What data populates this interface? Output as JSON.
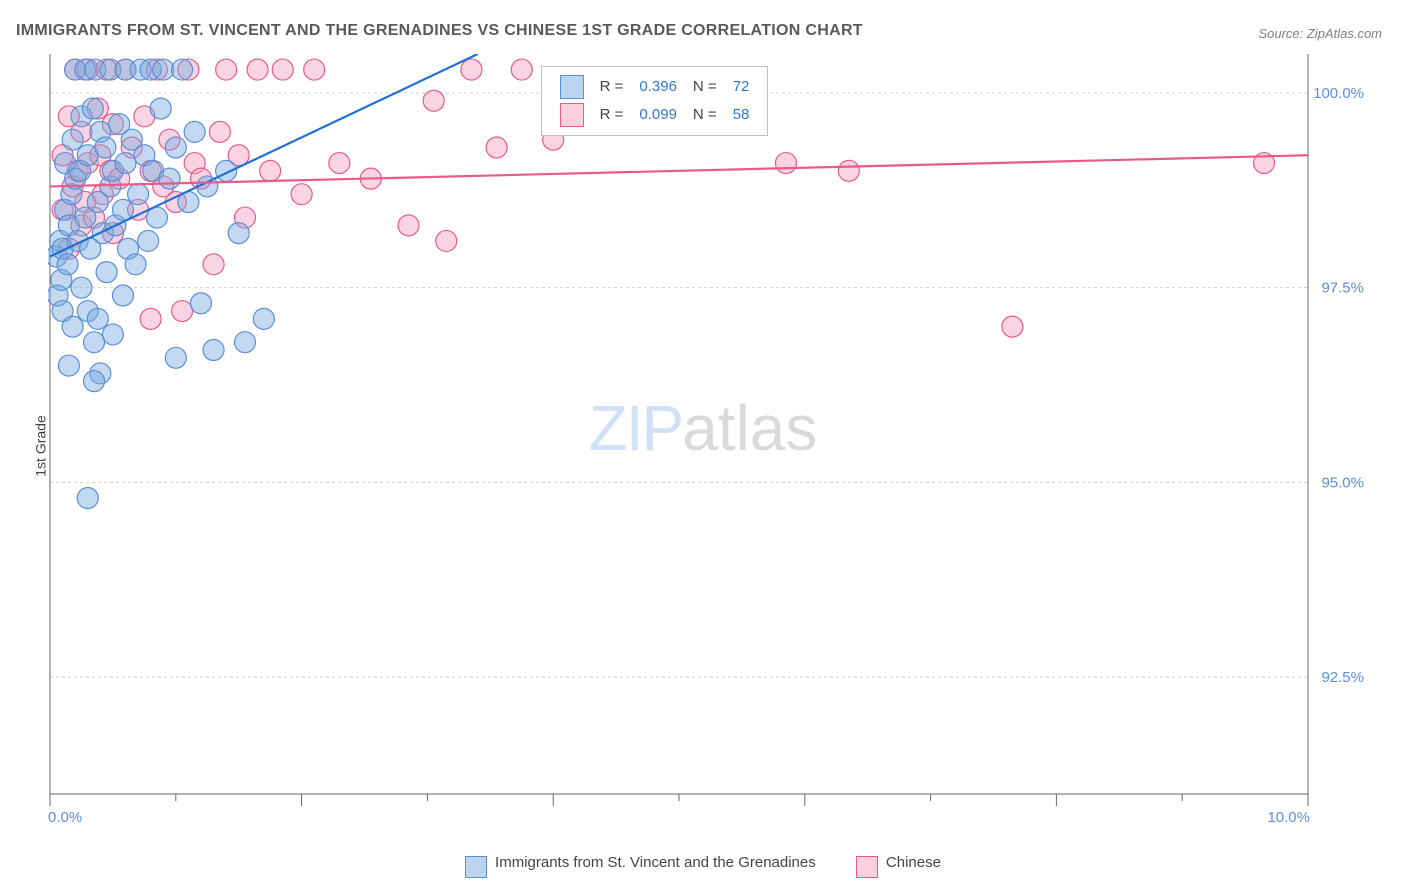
{
  "title": "IMMIGRANTS FROM ST. VINCENT AND THE GRENADINES VS CHINESE 1ST GRADE CORRELATION CHART",
  "source": "Source: ZipAtlas.com",
  "ylabel": "1st Grade",
  "watermark": {
    "part1": "ZIP",
    "part2": "atlas"
  },
  "chart": {
    "type": "scatter",
    "xlim": [
      0,
      10
    ],
    "ylim": [
      91,
      100.5
    ],
    "xtick_start": 0,
    "xtick_end": 10,
    "xtick_major": 2,
    "xtick_minor": 1,
    "ytick_values": [
      92.5,
      95.0,
      97.5,
      100.0
    ],
    "ytick_labels": [
      "92.5%",
      "95.0%",
      "97.5%",
      "100.0%"
    ],
    "x_first_label": "0.0%",
    "x_last_label": "10.0%",
    "marker_radius": 10.5,
    "plot_bg": "#ffffff",
    "grid_color": "#d0d0d0",
    "axis_color": "#666666",
    "series": [
      {
        "name": "Immigrants from St. Vincent and the Grenadines",
        "color_fill": "rgba(120,170,225,0.45)",
        "color_stroke": "#5b8fd6",
        "R": "0.396",
        "N": "72",
        "regression": {
          "x1": 0,
          "y1": 97.9,
          "x2": 3.4,
          "y2": 100.5
        },
        "points": [
          [
            0.05,
            97.9
          ],
          [
            0.06,
            97.4
          ],
          [
            0.08,
            98.1
          ],
          [
            0.09,
            97.6
          ],
          [
            0.1,
            97.2
          ],
          [
            0.1,
            98.0
          ],
          [
            0.12,
            98.5
          ],
          [
            0.12,
            99.1
          ],
          [
            0.14,
            97.8
          ],
          [
            0.15,
            98.3
          ],
          [
            0.15,
            96.5
          ],
          [
            0.17,
            98.7
          ],
          [
            0.18,
            99.4
          ],
          [
            0.18,
            97.0
          ],
          [
            0.2,
            100.3
          ],
          [
            0.2,
            98.9
          ],
          [
            0.22,
            98.1
          ],
          [
            0.24,
            99.0
          ],
          [
            0.25,
            97.5
          ],
          [
            0.25,
            99.7
          ],
          [
            0.28,
            100.3
          ],
          [
            0.28,
            98.4
          ],
          [
            0.3,
            97.2
          ],
          [
            0.3,
            99.2
          ],
          [
            0.32,
            98.0
          ],
          [
            0.34,
            99.8
          ],
          [
            0.35,
            96.8
          ],
          [
            0.36,
            100.3
          ],
          [
            0.38,
            97.1
          ],
          [
            0.38,
            98.6
          ],
          [
            0.4,
            99.5
          ],
          [
            0.4,
            96.4
          ],
          [
            0.42,
            98.2
          ],
          [
            0.44,
            99.3
          ],
          [
            0.45,
            97.7
          ],
          [
            0.48,
            100.3
          ],
          [
            0.48,
            98.8
          ],
          [
            0.5,
            99.0
          ],
          [
            0.5,
            96.9
          ],
          [
            0.52,
            98.3
          ],
          [
            0.55,
            99.6
          ],
          [
            0.58,
            97.4
          ],
          [
            0.58,
            98.5
          ],
          [
            0.6,
            100.3
          ],
          [
            0.6,
            99.1
          ],
          [
            0.62,
            98.0
          ],
          [
            0.65,
            99.4
          ],
          [
            0.68,
            97.8
          ],
          [
            0.7,
            98.7
          ],
          [
            0.72,
            100.3
          ],
          [
            0.75,
            99.2
          ],
          [
            0.78,
            98.1
          ],
          [
            0.8,
            100.3
          ],
          [
            0.82,
            99.0
          ],
          [
            0.85,
            98.4
          ],
          [
            0.88,
            99.8
          ],
          [
            0.9,
            100.3
          ],
          [
            0.95,
            98.9
          ],
          [
            1.0,
            99.3
          ],
          [
            1.0,
            96.6
          ],
          [
            1.05,
            100.3
          ],
          [
            1.1,
            98.6
          ],
          [
            1.15,
            99.5
          ],
          [
            1.2,
            97.3
          ],
          [
            1.25,
            98.8
          ],
          [
            1.3,
            96.7
          ],
          [
            1.4,
            99.0
          ],
          [
            1.5,
            98.2
          ],
          [
            1.55,
            96.8
          ],
          [
            1.7,
            97.1
          ],
          [
            0.3,
            94.8
          ],
          [
            0.35,
            96.3
          ]
        ]
      },
      {
        "name": "Chinese",
        "color_fill": "rgba(245,160,190,0.45)",
        "color_stroke": "#e85a8a",
        "R": "0.099",
        "N": "58",
        "regression": {
          "x1": 0,
          "y1": 98.8,
          "x2": 10,
          "y2": 99.2
        },
        "points": [
          [
            0.1,
            98.5
          ],
          [
            0.1,
            99.2
          ],
          [
            0.15,
            98.0
          ],
          [
            0.15,
            99.7
          ],
          [
            0.18,
            98.8
          ],
          [
            0.2,
            100.3
          ],
          [
            0.22,
            99.0
          ],
          [
            0.25,
            98.3
          ],
          [
            0.25,
            99.5
          ],
          [
            0.28,
            98.6
          ],
          [
            0.3,
            100.3
          ],
          [
            0.3,
            99.1
          ],
          [
            0.35,
            98.4
          ],
          [
            0.38,
            99.8
          ],
          [
            0.4,
            99.2
          ],
          [
            0.42,
            98.7
          ],
          [
            0.45,
            100.3
          ],
          [
            0.48,
            99.0
          ],
          [
            0.5,
            98.2
          ],
          [
            0.5,
            99.6
          ],
          [
            0.55,
            98.9
          ],
          [
            0.6,
            100.3
          ],
          [
            0.65,
            99.3
          ],
          [
            0.7,
            98.5
          ],
          [
            0.75,
            99.7
          ],
          [
            0.8,
            99.0
          ],
          [
            0.85,
            100.3
          ],
          [
            0.9,
            98.8
          ],
          [
            0.95,
            99.4
          ],
          [
            1.0,
            98.6
          ],
          [
            1.05,
            97.2
          ],
          [
            1.1,
            100.3
          ],
          [
            1.15,
            99.1
          ],
          [
            1.2,
            98.9
          ],
          [
            1.3,
            97.8
          ],
          [
            1.35,
            99.5
          ],
          [
            1.4,
            100.3
          ],
          [
            1.5,
            99.2
          ],
          [
            1.55,
            98.4
          ],
          [
            1.65,
            100.3
          ],
          [
            1.75,
            99.0
          ],
          [
            1.85,
            100.3
          ],
          [
            2.0,
            98.7
          ],
          [
            2.1,
            100.3
          ],
          [
            2.3,
            99.1
          ],
          [
            2.55,
            98.9
          ],
          [
            2.85,
            98.3
          ],
          [
            3.05,
            99.9
          ],
          [
            3.15,
            98.1
          ],
          [
            3.35,
            100.3
          ],
          [
            3.55,
            99.3
          ],
          [
            3.75,
            100.3
          ],
          [
            4.0,
            99.4
          ],
          [
            5.85,
            99.1
          ],
          [
            6.35,
            99.0
          ],
          [
            7.65,
            97.0
          ],
          [
            9.65,
            99.1
          ],
          [
            0.8,
            97.1
          ]
        ]
      }
    ]
  },
  "legend_top": {
    "R_label": "R =",
    "N_label": "N ="
  },
  "legend_bottom": {
    "items": [
      {
        "swatch": "blue",
        "label": "Immigrants from St. Vincent and the Grenadines"
      },
      {
        "swatch": "pink",
        "label": "Chinese"
      }
    ]
  }
}
